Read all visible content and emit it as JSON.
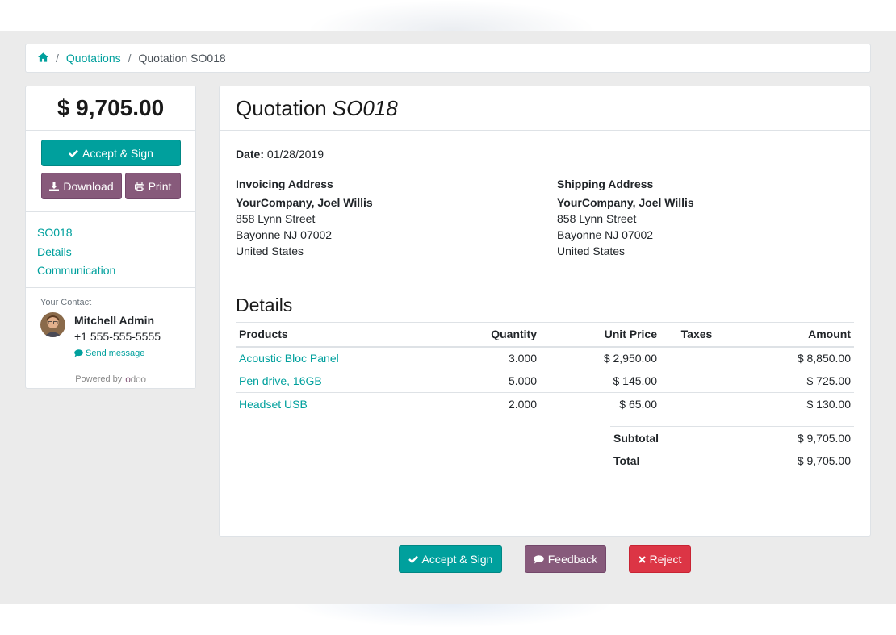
{
  "breadcrumb": {
    "home_icon": "home-icon",
    "quotations_link": "Quotations",
    "separator": "/",
    "current": "Quotation SO018"
  },
  "sidebar": {
    "amount": "$ 9,705.00",
    "accept_sign_label": "Accept & Sign",
    "download_label": "Download",
    "print_label": "Print",
    "nav": [
      "SO018",
      "Details",
      "Communication"
    ],
    "contact": {
      "label": "Your Contact",
      "name": "Mitchell Admin",
      "phone": "+1 555-555-5555",
      "send_message": "Send message"
    },
    "powered_by": "Powered by",
    "brand": "odoo"
  },
  "quotation": {
    "title_prefix": "Quotation",
    "number": "SO018",
    "date_label": "Date:",
    "date_value": "01/28/2019",
    "invoicing": {
      "title": "Invoicing Address",
      "name": "YourCompany, Joel Willis",
      "street": "858 Lynn Street",
      "city": "Bayonne NJ 07002",
      "country": "United States"
    },
    "shipping": {
      "title": "Shipping Address",
      "name": "YourCompany, Joel Willis",
      "street": "858 Lynn Street",
      "city": "Bayonne NJ 07002",
      "country": "United States"
    },
    "details_title": "Details",
    "columns": {
      "products": "Products",
      "quantity": "Quantity",
      "unit_price": "Unit Price",
      "taxes": "Taxes",
      "amount": "Amount"
    },
    "lines": [
      {
        "product": "Acoustic Bloc Panel",
        "quantity": "3.000",
        "unit_price": "$ 2,950.00",
        "taxes": "",
        "amount": "$ 8,850.00"
      },
      {
        "product": "Pen drive, 16GB",
        "quantity": "5.000",
        "unit_price": "$ 145.00",
        "taxes": "",
        "amount": "$ 725.00"
      },
      {
        "product": "Headset USB",
        "quantity": "2.000",
        "unit_price": "$ 65.00",
        "taxes": "",
        "amount": "$ 130.00"
      }
    ],
    "subtotal_label": "Subtotal",
    "subtotal_value": "$ 9,705.00",
    "total_label": "Total",
    "total_value": "$ 9,705.00"
  },
  "footer_actions": {
    "accept_sign": "Accept & Sign",
    "feedback": "Feedback",
    "reject": "Reject"
  },
  "colors": {
    "primary": "#00a09d",
    "secondary": "#875a7b",
    "danger": "#dc3545",
    "background": "#ebebeb"
  }
}
